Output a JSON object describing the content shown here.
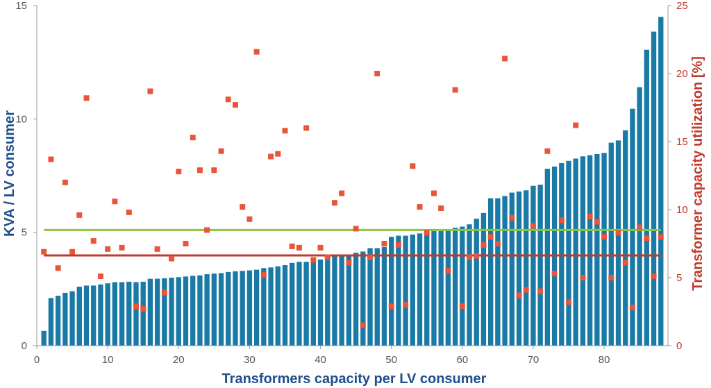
{
  "chart_data": {
    "type": "bar",
    "title": "",
    "xlabel": "Transformers capacity per LV consumer",
    "ylabel": "KVA / LV consumer",
    "y2label": "Transformer capacity utilization [%]",
    "xlim": [
      0,
      89
    ],
    "ylim": [
      0,
      15
    ],
    "y2lim": [
      0,
      25
    ],
    "xticks": [
      "0",
      "10",
      "20",
      "30",
      "40",
      "50",
      "60",
      "70",
      "80"
    ],
    "yticks": [
      "0",
      "5",
      "10",
      "15"
    ],
    "y2ticks": [
      "0",
      "5",
      "10",
      "15",
      "20",
      "25"
    ],
    "grid": false,
    "colors": {
      "bars": "#1a7aa6",
      "points": "#e8553a",
      "avg_green": "#8cc63f",
      "avg_red": "#c0392b",
      "left_axis": "#1f4e8c",
      "right_axis": "#c0392b"
    },
    "series": [
      {
        "type": "bar",
        "axis": "left",
        "x": [
          1,
          2,
          3,
          4,
          5,
          6,
          7,
          8,
          9,
          10,
          11,
          12,
          13,
          14,
          15,
          16,
          17,
          18,
          19,
          20,
          21,
          22,
          23,
          24,
          25,
          26,
          27,
          28,
          29,
          30,
          31,
          32,
          33,
          34,
          35,
          36,
          37,
          38,
          39,
          40,
          41,
          42,
          43,
          44,
          45,
          46,
          47,
          48,
          49,
          50,
          51,
          52,
          53,
          54,
          55,
          56,
          57,
          58,
          59,
          60,
          61,
          62,
          63,
          64,
          65,
          66,
          67,
          68,
          69,
          70,
          71,
          72,
          73,
          74,
          75,
          76,
          77,
          78,
          79,
          80,
          81,
          82,
          83,
          84,
          85,
          86,
          87,
          88
        ],
        "values": [
          0.65,
          2.1,
          2.2,
          2.33,
          2.4,
          2.6,
          2.65,
          2.65,
          2.7,
          2.75,
          2.8,
          2.8,
          2.82,
          2.8,
          2.82,
          2.95,
          2.95,
          2.97,
          3.0,
          3.02,
          3.05,
          3.08,
          3.1,
          3.15,
          3.18,
          3.2,
          3.25,
          3.28,
          3.3,
          3.32,
          3.35,
          3.42,
          3.45,
          3.5,
          3.55,
          3.65,
          3.7,
          3.7,
          3.8,
          3.8,
          3.9,
          3.95,
          4.0,
          4.02,
          4.1,
          4.15,
          4.3,
          4.3,
          4.35,
          4.8,
          4.85,
          4.85,
          4.9,
          4.95,
          5.0,
          5.05,
          5.05,
          5.1,
          5.2,
          5.25,
          5.35,
          5.6,
          5.85,
          6.5,
          6.5,
          6.6,
          6.75,
          6.8,
          6.85,
          7.05,
          7.1,
          7.8,
          7.9,
          8.05,
          8.15,
          8.25,
          8.35,
          8.4,
          8.45,
          8.5,
          8.95,
          9.05,
          9.5,
          10.45,
          11.4,
          13.05,
          13.85,
          14.5
        ]
      },
      {
        "type": "scatter",
        "axis": "right",
        "x": [
          1,
          2,
          3,
          4,
          5,
          6,
          7,
          8,
          9,
          10,
          11,
          12,
          13,
          14,
          15,
          16,
          17,
          18,
          19,
          20,
          21,
          22,
          23,
          24,
          25,
          26,
          27,
          28,
          29,
          30,
          31,
          32,
          33,
          34,
          35,
          36,
          37,
          38,
          39,
          40,
          41,
          42,
          43,
          44,
          45,
          46,
          47,
          48,
          49,
          50,
          51,
          52,
          53,
          54,
          55,
          56,
          57,
          58,
          59,
          60,
          61,
          62,
          63,
          64,
          65,
          66,
          67,
          68,
          69,
          70,
          71,
          72,
          73,
          74,
          75,
          76,
          77,
          78,
          79,
          80,
          81,
          82,
          83,
          84,
          85,
          86,
          87,
          88
        ],
        "values": [
          6.9,
          13.7,
          5.7,
          12.0,
          6.9,
          9.6,
          18.2,
          7.7,
          5.1,
          7.1,
          10.6,
          7.2,
          9.8,
          2.9,
          2.7,
          18.7,
          7.1,
          3.9,
          6.4,
          12.8,
          7.5,
          15.3,
          12.9,
          8.5,
          12.9,
          14.3,
          18.1,
          17.7,
          10.2,
          9.3,
          21.6,
          5.2,
          13.9,
          14.1,
          15.8,
          7.3,
          7.2,
          16.0,
          6.3,
          7.2,
          6.5,
          10.5,
          11.2,
          6.1,
          8.6,
          1.5,
          6.5,
          20.0,
          7.5,
          2.9,
          7.4,
          3.0,
          13.2,
          10.2,
          8.3,
          11.2,
          10.1,
          5.5,
          18.8,
          2.9,
          6.5,
          6.6,
          7.4,
          8.0,
          7.5,
          21.1,
          9.4,
          3.7,
          4.1,
          8.8,
          4.0,
          14.3,
          5.3,
          9.2,
          3.2,
          16.2,
          5.0,
          9.5,
          9.1,
          8.0,
          5.0,
          8.3,
          6.1,
          2.8,
          8.7,
          7.9,
          5.1,
          8.0
        ]
      }
    ],
    "reference_lines": [
      {
        "axis": "left",
        "value": 5.1,
        "color": "#8cc63f"
      },
      {
        "axis": "left",
        "value": 3.98,
        "color": "#c0392b"
      }
    ]
  }
}
